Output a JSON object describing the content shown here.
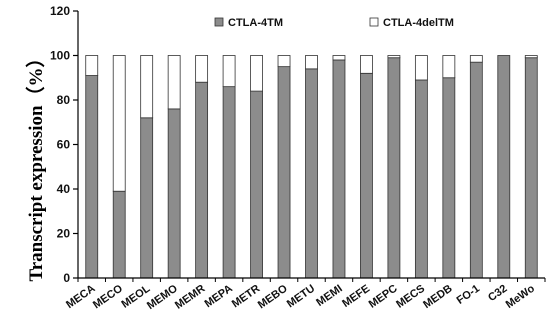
{
  "chart_data": {
    "type": "bar",
    "stacked": true,
    "ylabel": "Transcript expression（%）",
    "ylim": [
      0,
      120
    ],
    "yticks": [
      0,
      20,
      40,
      60,
      80,
      100,
      120
    ],
    "grid": false,
    "legend_position": "top",
    "categories": [
      "MECA",
      "MECO",
      "MEOL",
      "MEMO",
      "MEMR",
      "MEPA",
      "METR",
      "MEBO",
      "METU",
      "MEMI",
      "MEFE",
      "MEPC",
      "MECS",
      "MEDB",
      "FO-1",
      "C32",
      "MeWo"
    ],
    "series": [
      {
        "name": "CTLA-4TM",
        "color": "#8c8c8c",
        "values": [
          91,
          39,
          72,
          76,
          88,
          86,
          84,
          95,
          94,
          98,
          92,
          99,
          89,
          90,
          97,
          100,
          99
        ]
      },
      {
        "name": "CTLA-4delTM",
        "color": "#ffffff",
        "values": [
          9,
          61,
          28,
          24,
          12,
          14,
          16,
          5,
          6,
          2,
          8,
          1,
          11,
          10,
          3,
          0,
          1
        ]
      }
    ]
  }
}
